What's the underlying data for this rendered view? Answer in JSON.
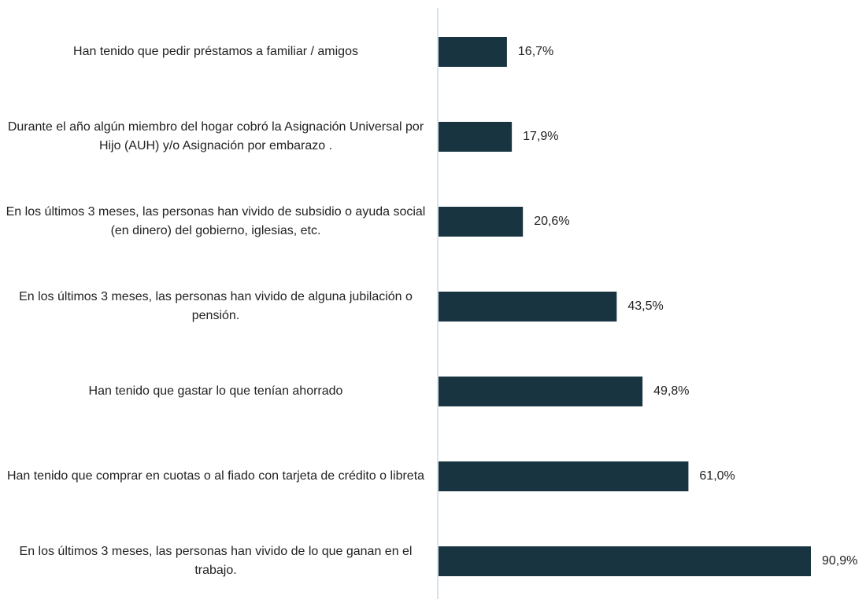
{
  "chart_data": {
    "type": "barh",
    "categories": [
      "Han tenido que pedir préstamos a familiar / amigos",
      "Durante el año algún miembro del hogar cobró la Asignación Universal por Hijo (AUH) y/o Asignación por embarazo .",
      "En los últimos 3 meses, las personas han vivido de subsidio o ayuda social (en dinero) del gobierno, iglesias, etc.",
      "En los últimos 3 meses, las personas han vivido de alguna jubilación o pensión.",
      "Han tenido que gastar lo que tenían ahorrado",
      "Han tenido que comprar en cuotas o al fiado con tarjeta de crédito o libreta",
      "En los últimos 3 meses, las personas han vivido de lo que ganan en el trabajo."
    ],
    "values": [
      16.7,
      17.9,
      20.6,
      43.5,
      49.8,
      61.0,
      90.9
    ],
    "value_labels": [
      "16,7%",
      "17,9%",
      "20,6%",
      "43,5%",
      "49,8%",
      "61,0%",
      "90,9%"
    ],
    "color": "#173440"
  }
}
